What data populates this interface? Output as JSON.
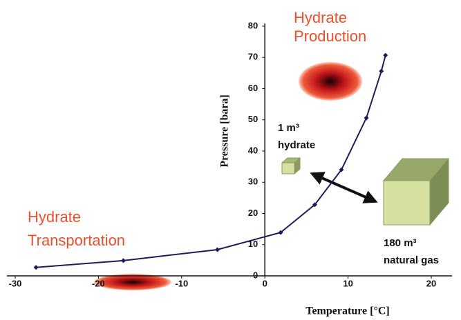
{
  "chart_data": {
    "type": "line",
    "xlabel": "Temperature [°C]",
    "ylabel": "Pressure [bara]",
    "x": [
      -27.5,
      -17,
      -5.7,
      1.9,
      6,
      9.2,
      12.2,
      14,
      14.5
    ],
    "series": [
      {
        "color": "#1c1c5a",
        "values": [
          2.7,
          4.9,
          8.4,
          13.9,
          22.8,
          34,
          50.6,
          65.6,
          70.7
        ]
      }
    ],
    "xlim": [
      -30,
      20
    ],
    "xticks": [
      -30,
      -20,
      -10,
      0,
      10,
      20
    ],
    "ylim": [
      0,
      80
    ],
    "yticks": [
      0,
      10,
      20,
      30,
      40,
      50,
      60,
      70,
      80
    ],
    "annotations": [
      {
        "lines": [
          "Hydrate",
          "Production"
        ]
      },
      {
        "lines": [
          "Hydrate",
          "Transportation"
        ]
      },
      {
        "lines": [
          "1 m³",
          "hydrate"
        ]
      },
      {
        "lines": [
          "180 m³",
          "natural gas"
        ]
      }
    ]
  }
}
